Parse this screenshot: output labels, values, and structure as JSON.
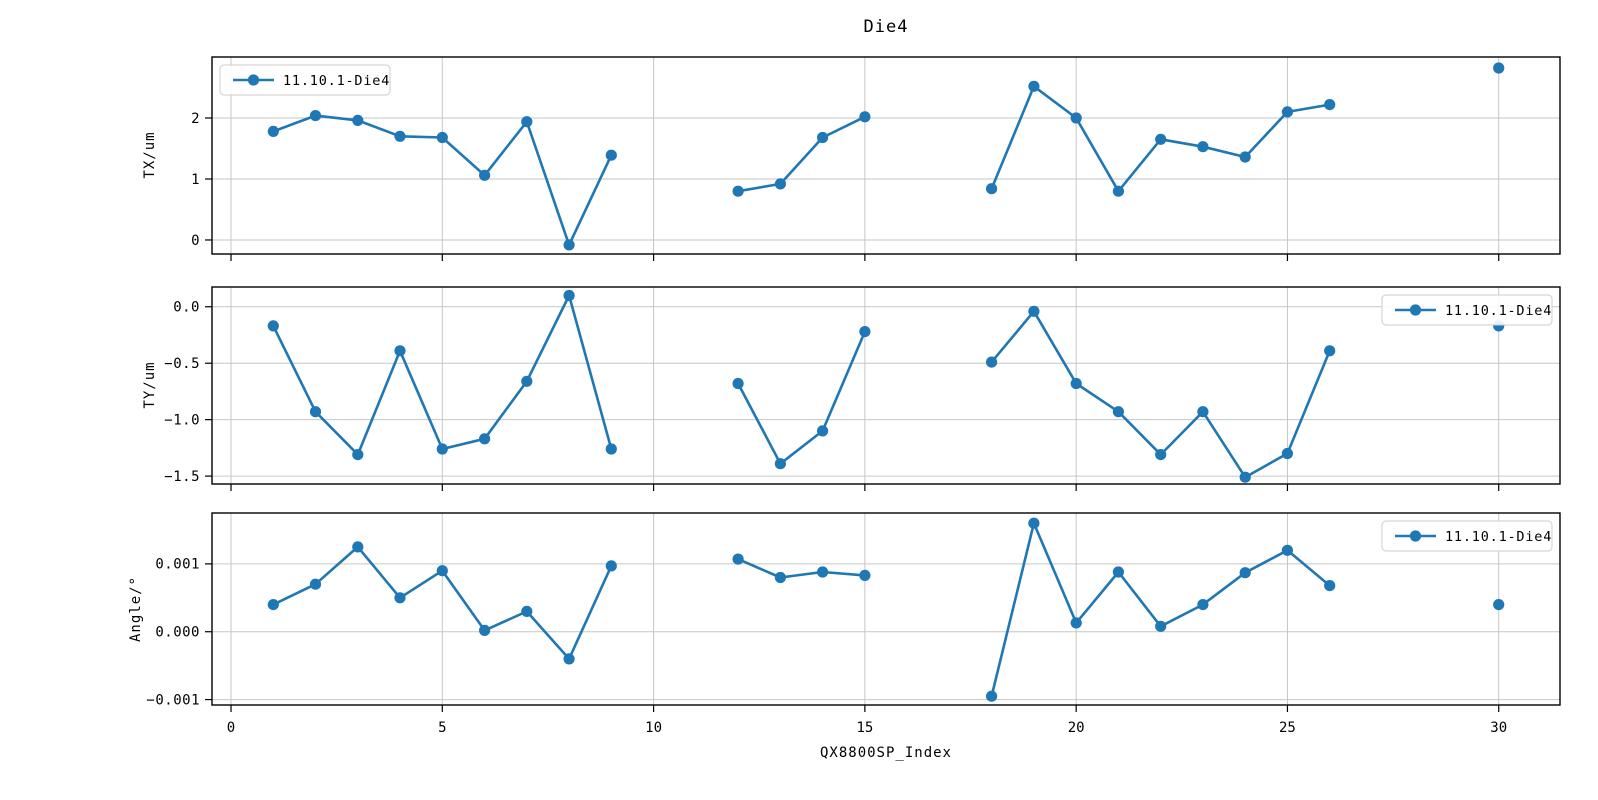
{
  "chart": {
    "title": "Die4",
    "xlabel": "QX8800SP_Index",
    "legend_label": "11.10.1-Die4",
    "series_color": "#1f77b4",
    "grid_color": "#c6c6c6",
    "xlim": [
      -0.45,
      31.45
    ],
    "xtick_values": [
      0,
      5,
      10,
      15,
      20,
      25,
      30
    ],
    "xtick_labels": [
      "0",
      "5",
      "10",
      "15",
      "20",
      "25",
      "30"
    ]
  },
  "chart_data": [
    {
      "type": "line",
      "ylabel": "TX/um",
      "legend": "11.10.1-Die4",
      "legend_position": "top-left",
      "grid": true,
      "ylim": [
        -0.23,
        3.0
      ],
      "ytick_values": [
        0,
        1,
        2
      ],
      "ytick_labels": [
        "0",
        "1",
        "2"
      ],
      "points": [
        [
          1,
          1.78
        ],
        [
          2,
          2.04
        ],
        [
          3,
          1.96
        ],
        [
          4,
          1.7
        ],
        [
          5,
          1.68
        ],
        [
          6,
          1.06
        ],
        [
          7,
          1.94
        ],
        [
          8,
          -0.08
        ],
        [
          9,
          1.39
        ],
        [
          12,
          0.8
        ],
        [
          13,
          0.92
        ],
        [
          14,
          1.68
        ],
        [
          15,
          2.02
        ],
        [
          18,
          0.84
        ],
        [
          19,
          2.52
        ],
        [
          20,
          2.0
        ],
        [
          21,
          0.8
        ],
        [
          22,
          1.65
        ],
        [
          23,
          1.53
        ],
        [
          24,
          1.36
        ],
        [
          25,
          2.1
        ],
        [
          26,
          2.22
        ],
        [
          30,
          2.82
        ]
      ]
    },
    {
      "type": "line",
      "ylabel": "TY/um",
      "legend": "11.10.1-Die4",
      "legend_position": "top-right",
      "grid": true,
      "ylim": [
        -1.57,
        0.175
      ],
      "ytick_values": [
        0.0,
        -0.5,
        -1.0,
        -1.5
      ],
      "ytick_labels": [
        "0.0",
        "−0.5",
        "−1.0",
        "−1.5"
      ],
      "points": [
        [
          1,
          -0.17
        ],
        [
          2,
          -0.93
        ],
        [
          3,
          -1.31
        ],
        [
          4,
          -0.39
        ],
        [
          5,
          -1.26
        ],
        [
          6,
          -1.17
        ],
        [
          7,
          -0.66
        ],
        [
          8,
          0.1
        ],
        [
          9,
          -1.26
        ],
        [
          12,
          -0.68
        ],
        [
          13,
          -1.39
        ],
        [
          14,
          -1.1
        ],
        [
          15,
          -0.22
        ],
        [
          18,
          -0.49
        ],
        [
          19,
          -0.04
        ],
        [
          20,
          -0.68
        ],
        [
          21,
          -0.93
        ],
        [
          22,
          -1.31
        ],
        [
          23,
          -0.93
        ],
        [
          24,
          -1.51
        ],
        [
          25,
          -1.3
        ],
        [
          26,
          -0.39
        ],
        [
          30,
          -0.17
        ]
      ]
    },
    {
      "type": "line",
      "ylabel": "Angle/°",
      "legend": "11.10.1-Die4",
      "legend_position": "top-right",
      "grid": true,
      "ylim": [
        -0.00108,
        0.00175
      ],
      "ytick_values": [
        0.001,
        0.0,
        -0.001
      ],
      "ytick_labels": [
        "0.001",
        "0.000",
        "−0.001"
      ],
      "points": [
        [
          1,
          0.0004
        ],
        [
          2,
          0.0007
        ],
        [
          3,
          0.00125
        ],
        [
          4,
          0.0005
        ],
        [
          5,
          0.0009
        ],
        [
          6,
          2e-05
        ],
        [
          7,
          0.0003
        ],
        [
          8,
          -0.0004
        ],
        [
          9,
          0.00097
        ],
        [
          12,
          0.00107
        ],
        [
          13,
          0.0008
        ],
        [
          14,
          0.00088
        ],
        [
          15,
          0.00083
        ],
        [
          18,
          -0.00095
        ],
        [
          19,
          0.0016
        ],
        [
          20,
          0.00013
        ],
        [
          21,
          0.00088
        ],
        [
          22,
          8e-05
        ],
        [
          23,
          0.0004
        ],
        [
          24,
          0.00087
        ],
        [
          25,
          0.0012
        ],
        [
          26,
          0.00068
        ],
        [
          30,
          0.0004
        ]
      ]
    }
  ]
}
